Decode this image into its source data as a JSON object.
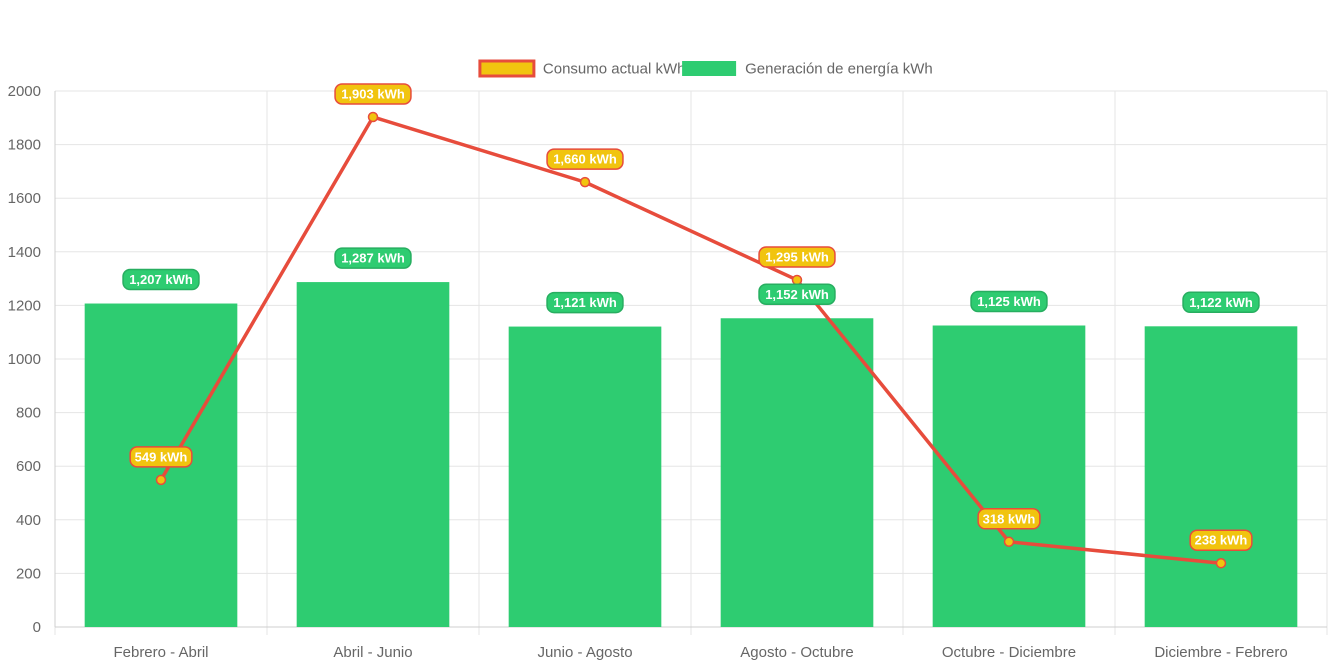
{
  "chart_data": {
    "type": "bar",
    "categories": [
      "Febrero - Abril",
      "Abril - Junio",
      "Junio - Agosto",
      "Agosto - Octubre",
      "Octubre - Diciembre",
      "Diciembre - Febrero"
    ],
    "series": [
      {
        "name": "Consumo actual kWh",
        "type": "line",
        "values": [
          549,
          1903,
          1660,
          1295,
          318,
          238
        ],
        "labels": [
          "549 kWh",
          "1,903 kWh",
          "1,660 kWh",
          "1,295 kWh",
          "318 kWh",
          "238 kWh"
        ],
        "color": "#e74c3c",
        "point_color": "#f1c40f"
      },
      {
        "name": "Generación de energía kWh",
        "type": "bar",
        "values": [
          1207,
          1287,
          1121,
          1152,
          1125,
          1122
        ],
        "labels": [
          "1,207 kWh",
          "1,287 kWh",
          "1,121 kWh",
          "1,152 kWh",
          "1,125 kWh",
          "1,122 kWh"
        ],
        "color": "#2ecc71"
      }
    ],
    "ylim": [
      0,
      2000
    ],
    "yticks": [
      "0",
      "200",
      "400",
      "600",
      "800",
      "1000",
      "1200",
      "1400",
      "1600",
      "1800",
      "2000"
    ],
    "grid": true,
    "legend_position": "top-center"
  }
}
